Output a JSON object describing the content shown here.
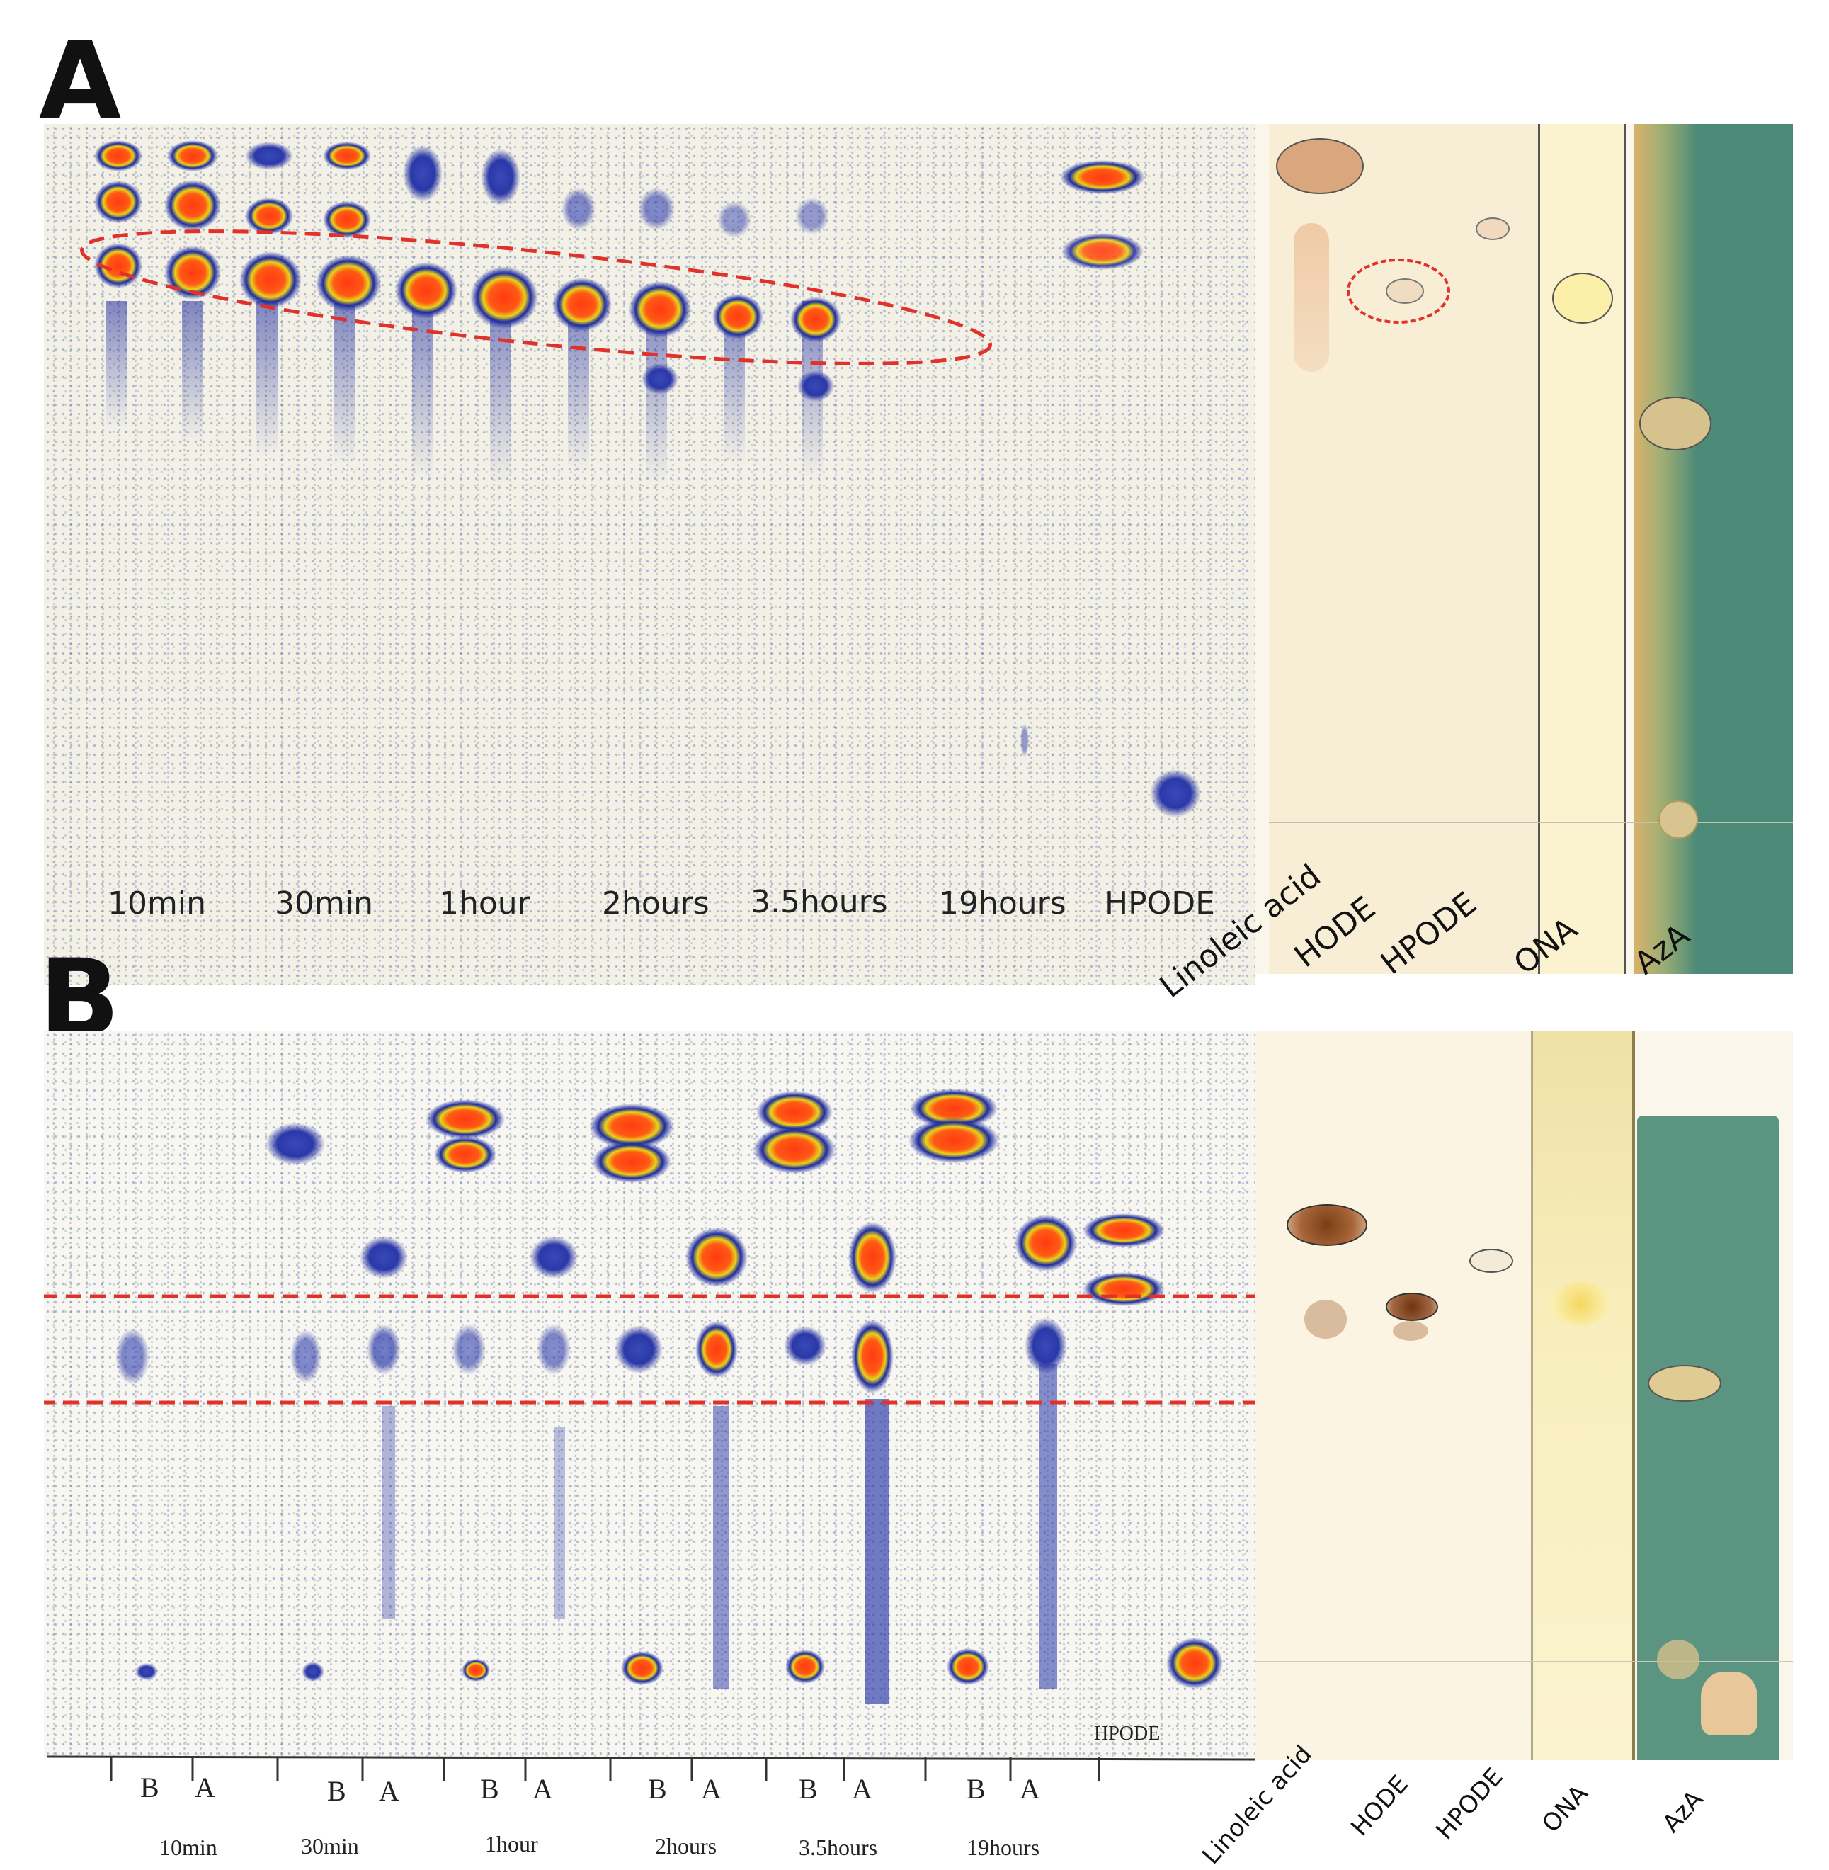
{
  "panels": [
    {
      "letter": "A",
      "lane_labels": [
        "10min",
        "30min",
        "1hour",
        "2hours",
        "3.5hours",
        "19hours",
        "HPODE"
      ],
      "plate_labels": [
        "Linoleic acid",
        "HODE",
        "HPODE",
        "ONA",
        "AzA"
      ]
    },
    {
      "letter": "B",
      "lane_small_label": "HPODE",
      "pair_labels": [
        "B",
        "A",
        "B",
        "A",
        "B",
        "A",
        "B",
        "A",
        "B",
        "A",
        "B",
        "A"
      ],
      "time_labels": [
        "10min",
        "30min",
        "1hour",
        "2hours",
        "3.5hours",
        "19hours"
      ],
      "plate_labels": [
        "Linoleic acid",
        "HODE",
        "HPODE",
        "ONA",
        "AzA"
      ]
    }
  ],
  "colors": {
    "highlight": "#e0322b",
    "spot_core": "#ff3b12",
    "spot_mid": "#e8d21c",
    "spot_halo": "#1f2c9e",
    "plate_bg": "#f6edd6",
    "aza_plate": "#4c8a78"
  }
}
